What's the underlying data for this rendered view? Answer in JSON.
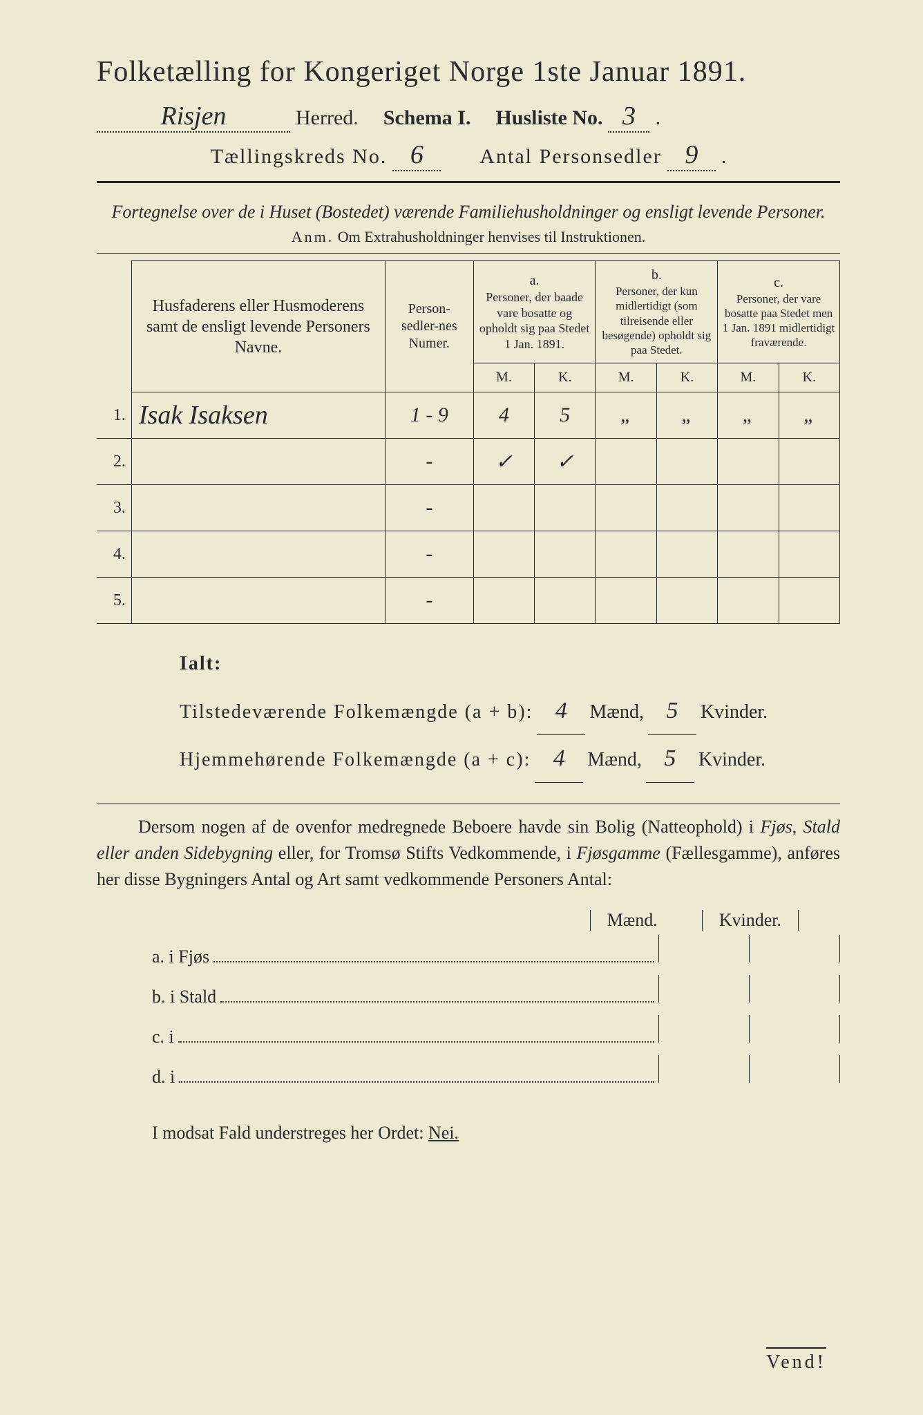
{
  "title": "Folketælling for Kongeriget Norge 1ste Januar 1891.",
  "header": {
    "herred_value": "Risjen",
    "herred_label": "Herred.",
    "schema_label": "Schema I.",
    "husliste_label": "Husliste No.",
    "husliste_value": "3",
    "kreds_label": "Tællingskreds No.",
    "kreds_value": "6",
    "personsedler_label": "Antal Personsedler",
    "personsedler_value": "9"
  },
  "intro": {
    "line": "Fortegnelse over de i Huset (Bostedet) værende Familiehusholdninger og ensligt levende Personer.",
    "anm_prefix": "Anm.",
    "anm_text": "Om Extrahusholdninger henvises til Instruktionen."
  },
  "table": {
    "col_name": "Husfaderens eller Husmoderens samt de ensligt levende Personers Navne.",
    "col_numer": "Person-sedler-nes Numer.",
    "col_a_label": "a.",
    "col_a_text": "Personer, der baade vare bosatte og opholdt sig paa Stedet 1 Jan. 1891.",
    "col_b_label": "b.",
    "col_b_text": "Personer, der kun midlertidigt (som tilreisende eller besøgende) opholdt sig paa Stedet.",
    "col_c_label": "c.",
    "col_c_text": "Personer, der vare bosatte paa Stedet men 1 Jan. 1891 midlertidigt fraværende.",
    "m": "M.",
    "k": "K.",
    "rows": [
      {
        "num": "1.",
        "name": "Isak Isaksen",
        "numer": "1 - 9",
        "a_m": "4",
        "a_k": "5",
        "b_m": "„",
        "b_k": "„",
        "c_m": "„",
        "c_k": "„"
      },
      {
        "num": "2.",
        "name": "",
        "numer": "-",
        "a_m": "✓",
        "a_k": "✓",
        "b_m": "",
        "b_k": "",
        "c_m": "",
        "c_k": ""
      },
      {
        "num": "3.",
        "name": "",
        "numer": "-",
        "a_m": "",
        "a_k": "",
        "b_m": "",
        "b_k": "",
        "c_m": "",
        "c_k": ""
      },
      {
        "num": "4.",
        "name": "",
        "numer": "-",
        "a_m": "",
        "a_k": "",
        "b_m": "",
        "b_k": "",
        "c_m": "",
        "c_k": ""
      },
      {
        "num": "5.",
        "name": "",
        "numer": "-",
        "a_m": "",
        "a_k": "",
        "b_m": "",
        "b_k": "",
        "c_m": "",
        "c_k": ""
      }
    ]
  },
  "ialt": {
    "label": "Ialt:",
    "row1_label": "Tilstedeværende Folkemængde (a + b):",
    "row1_m": "4",
    "row1_k": "5",
    "row2_label": "Hjemmehørende Folkemængde (a + c):",
    "row2_m": "4",
    "row2_k": "5",
    "maend": "Mænd,",
    "kvinder": "Kvinder."
  },
  "para": "Dersom nogen af de ovenfor medregnede Beboere havde sin Bolig (Natteophold) i Fjøs, Stald eller anden Sidebygning eller, for Tromsø Stifts Vedkommende, i Fjøsgamme (Fællesgamme), anføres her disse Bygningers Antal og Art samt vedkommende Personers Antal:",
  "mk": {
    "m": "Mænd.",
    "k": "Kvinder."
  },
  "sublist": {
    "a": "a.  i     Fjøs",
    "b": "b.  i     Stald",
    "c": "c.  i",
    "d": "d.  i"
  },
  "nei": {
    "prefix": "I modsat Fald understreges her Ordet:",
    "word": "Nei."
  },
  "vend": "Vend!"
}
